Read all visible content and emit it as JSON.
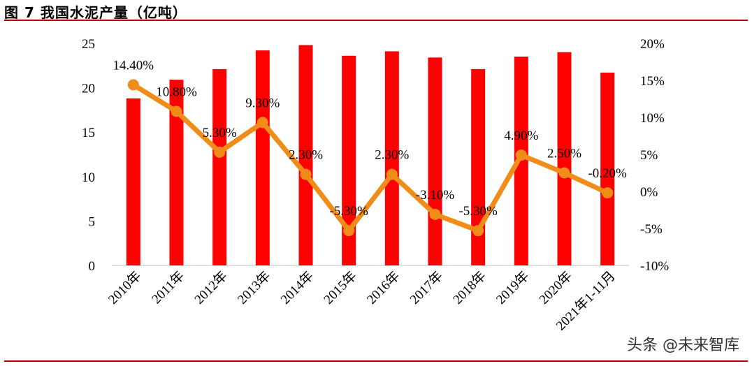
{
  "header": {
    "figure_label": "图 7 我国水泥产量（亿吨）"
  },
  "watermark": "头条 @未来智库",
  "colors": {
    "bar": "#ff0000",
    "line": "#f28c18",
    "rule": "#c00000"
  },
  "chart_data": {
    "type": "bar",
    "title": "我国水泥产量（亿吨）",
    "categories": [
      "2010年",
      "2011年",
      "2012年",
      "2013年",
      "2014年",
      "2015年",
      "2016年",
      "2017年",
      "2018年",
      "2019年",
      "2020年",
      "2021年1-11月"
    ],
    "series": [
      {
        "type": "bar",
        "axis": "left",
        "values": [
          18.8,
          20.9,
          22.1,
          24.2,
          24.8,
          23.6,
          24.1,
          23.4,
          22.1,
          23.5,
          24.0,
          21.7
        ]
      },
      {
        "type": "line",
        "axis": "right",
        "values": [
          14.4,
          10.8,
          5.3,
          9.3,
          2.3,
          -5.3,
          2.3,
          -3.1,
          -5.3,
          4.9,
          2.5,
          -0.2
        ],
        "labels": [
          "14.40%",
          "10.80%",
          "5.30%",
          "9.30%",
          "2.30%",
          "-5.30%",
          "2.30%",
          "-3.10%",
          "-5.30%",
          "4.90%",
          "2.50%",
          "-0.20%"
        ]
      }
    ],
    "y_left": {
      "min": 0,
      "max": 25,
      "ticks": [
        "0",
        "5",
        "10",
        "15",
        "20",
        "25"
      ]
    },
    "y_right": {
      "min": -10,
      "max": 20,
      "ticks": [
        "-10%",
        "-5%",
        "0%",
        "5%",
        "10%",
        "15%",
        "20%"
      ]
    },
    "grid": false,
    "legend": "none"
  }
}
